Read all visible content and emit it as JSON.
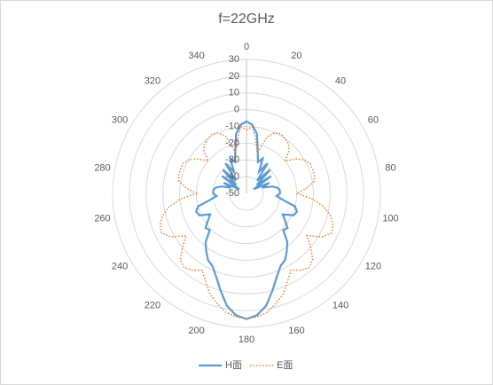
{
  "chart_data": {
    "type": "radar",
    "title": "f=22GHz",
    "categories": [
      0,
      null,
      null,
      null,
      20,
      null,
      null,
      null,
      40,
      null,
      null,
      null,
      60,
      null,
      null,
      null,
      80,
      null,
      null,
      null,
      100,
      null,
      null,
      null,
      120,
      null,
      null,
      null,
      140,
      null,
      null,
      null,
      160,
      null,
      null,
      null,
      180,
      null,
      null,
      null,
      200,
      null,
      null,
      null,
      220,
      null,
      null,
      null,
      240,
      null,
      null,
      null,
      260,
      null,
      null,
      null,
      280,
      null,
      null,
      null,
      300,
      null,
      null,
      null,
      320,
      null,
      null,
      null,
      340,
      null,
      null,
      null
    ],
    "series": [
      {
        "name": "H面",
        "color": "#5b9bd5",
        "dash": "solid",
        "values": [
          -7,
          -9,
          -14,
          -24,
          -30,
          -27,
          -35,
          -28,
          -40,
          -30,
          -42,
          -32,
          -45,
          -35,
          -40,
          -34,
          -31,
          -30,
          -30,
          -32,
          -28,
          -20,
          -18,
          -19,
          -25,
          -22,
          -18,
          -19,
          -12,
          -8,
          -4,
          -2,
          3,
          10,
          18,
          23,
          25,
          23,
          18,
          10,
          3,
          -2,
          -4,
          -8,
          -12,
          -19,
          -18,
          -22,
          -25,
          -19,
          -18,
          -20,
          -28,
          -32,
          -30,
          -30,
          -31,
          -34,
          -40,
          -35,
          -45,
          -32,
          -42,
          -30,
          -40,
          -28,
          -35,
          -27,
          -30,
          -24,
          -14,
          -9
        ]
      },
      {
        "name": "E面",
        "color": "#ed7d31",
        "dash": "dotted",
        "values": [
          -12,
          -10,
          -18,
          -25,
          -14,
          -10,
          -9,
          -10,
          -11,
          -14,
          -20,
          -14,
          -10,
          -8,
          -8,
          -8,
          -9,
          -14,
          -20,
          -10,
          -3,
          2,
          5,
          6,
          2,
          -6,
          0,
          6,
          8,
          6,
          3,
          8,
          14,
          18,
          22,
          24,
          25,
          24,
          22,
          18,
          14,
          8,
          3,
          6,
          8,
          6,
          0,
          -6,
          2,
          6,
          5,
          2,
          -3,
          -10,
          -20,
          -14,
          -9,
          -8,
          -8,
          -8,
          -10,
          -14,
          -20,
          -14,
          -11,
          -10,
          -9,
          -10,
          -14,
          -25,
          -18,
          -10
        ]
      }
    ],
    "ylim": [
      -50,
      30
    ],
    "yticks": [
      -50,
      -40,
      -30,
      -20,
      -10,
      0,
      10,
      20,
      30
    ],
    "grid": true,
    "legend": "bottom"
  }
}
